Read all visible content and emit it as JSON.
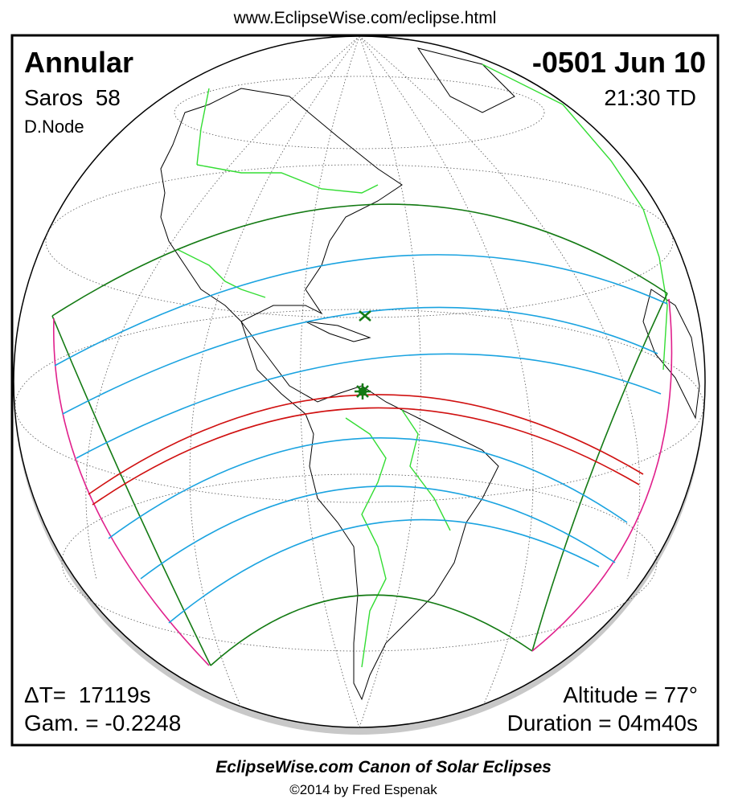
{
  "header": {
    "url": "www.EclipseWise.com/eclipse.html"
  },
  "panel": {
    "type": "Annular",
    "saros": "Saros  58",
    "node": "D.Node",
    "date": "-0501 Jun 10",
    "time": "21:30 TD",
    "delta_t": "ΔT=  17119s",
    "gamma": "Gam. = -0.2248",
    "altitude": "Altitude = 77°",
    "duration": "Duration = 04m40s"
  },
  "footer": {
    "title": "EclipseWise.com Canon of Solar Eclipses",
    "copyright": "©2014 by Fred Espenak"
  }
}
